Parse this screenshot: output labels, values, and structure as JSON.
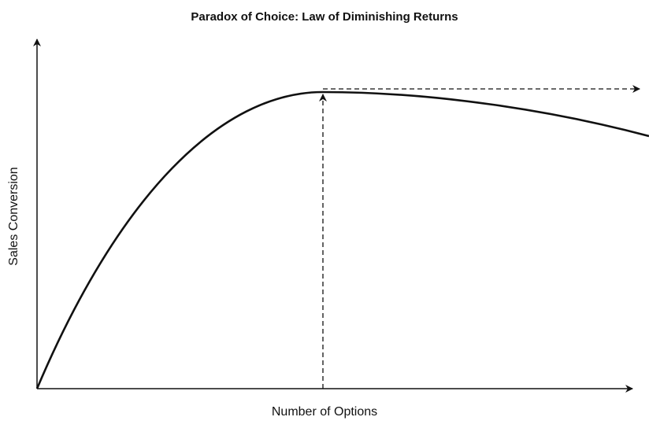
{
  "title": "Paradox of Choice: Law of Diminishing Returns",
  "x_axis_label": "Number of Options",
  "y_axis_label": "Sales Conversion"
}
